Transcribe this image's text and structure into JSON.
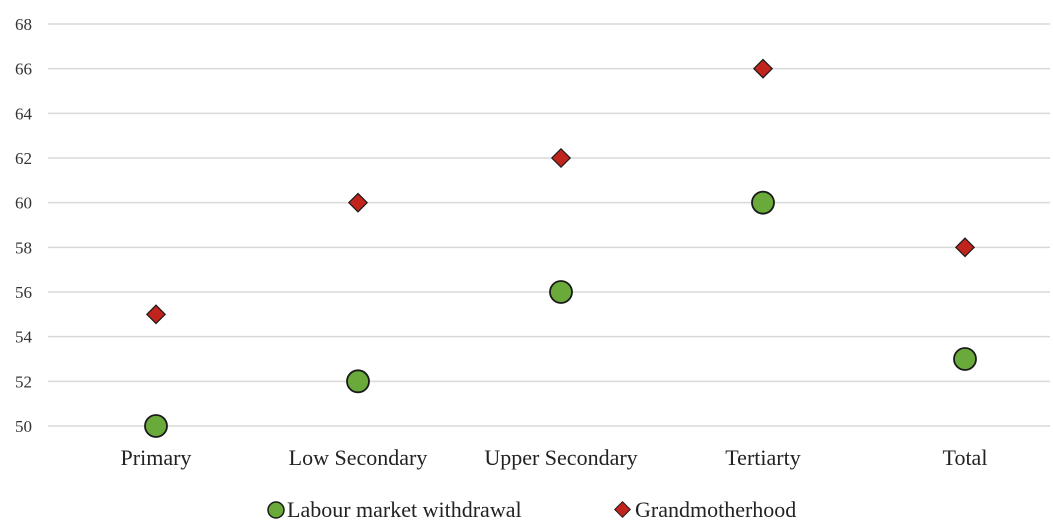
{
  "chart_data": {
    "type": "scatter",
    "categories": [
      "Primary",
      "Low Secondary",
      "Upper Secondary",
      "Tertiarty",
      "Total"
    ],
    "ylim": [
      50,
      68
    ],
    "yticks": [
      50,
      52,
      54,
      56,
      58,
      60,
      62,
      64,
      66,
      68
    ],
    "grid": true,
    "legend_position": "bottom",
    "series": [
      {
        "name": "Labour market withdrawal",
        "marker": "circle",
        "color": "#6aaa3a",
        "values": [
          50,
          52,
          56,
          60,
          53
        ]
      },
      {
        "name": "Grandmotherhood",
        "marker": "diamond",
        "color": "#c0241c",
        "values": [
          55,
          60,
          62,
          66,
          58
        ]
      }
    ]
  }
}
